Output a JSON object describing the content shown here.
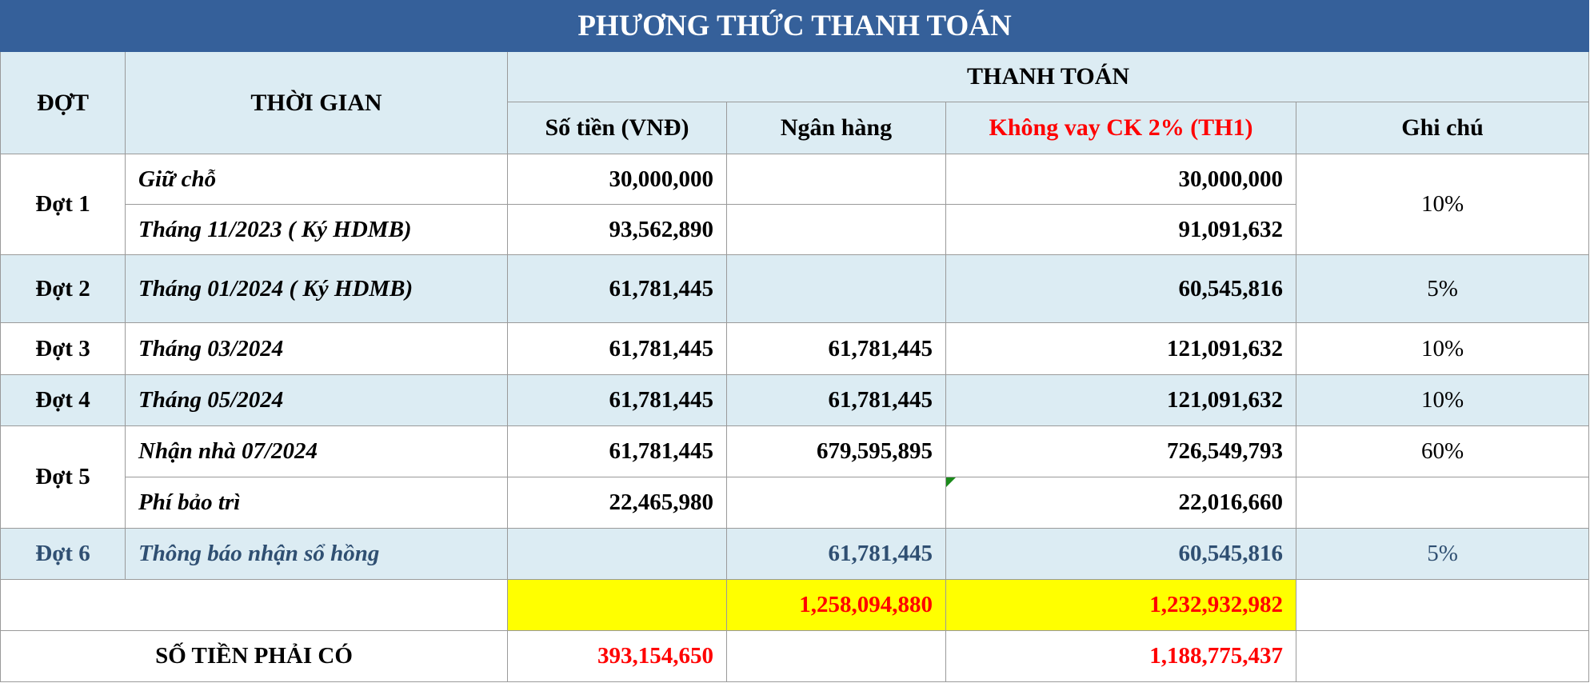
{
  "title": "PHƯƠNG THỨC THANH TOÁN",
  "headers": {
    "dot": "ĐỢT",
    "thoi_gian": "THỜI GIAN",
    "thanh_toan": "THANH TOÁN",
    "so_tien": "Số tiền (VNĐ)",
    "ngan_hang": "Ngân hàng",
    "khong_vay": "Không vay CK 2% (TH1)",
    "ghi_chu": "Ghi chú"
  },
  "rows": [
    {
      "dot": "Đợt 1",
      "time": "Giữ chỗ",
      "so_tien": "30,000,000",
      "ngan_hang": "",
      "khong_vay": "30,000,000",
      "ghi_chu": "10%"
    },
    {
      "time": "Tháng 11/2023 ( Ký HDMB)",
      "so_tien": "93,562,890",
      "ngan_hang": "",
      "khong_vay": "91,091,632"
    },
    {
      "dot": "Đợt 2",
      "time": "Tháng 01/2024 ( Ký HDMB)",
      "so_tien": "61,781,445",
      "ngan_hang": "",
      "khong_vay": "60,545,816",
      "ghi_chu": "5%"
    },
    {
      "dot": "Đợt 3",
      "time": "Tháng 03/2024",
      "so_tien": "61,781,445",
      "ngan_hang": "61,781,445",
      "khong_vay": "121,091,632",
      "ghi_chu": "10%"
    },
    {
      "dot": "Đợt 4",
      "time": "Tháng 05/2024",
      "so_tien": "61,781,445",
      "ngan_hang": "61,781,445",
      "khong_vay": "121,091,632",
      "ghi_chu": "10%"
    },
    {
      "dot": "Đợt 5",
      "time": "Nhận nhà 07/2024",
      "so_tien": "61,781,445",
      "ngan_hang": "679,595,895",
      "khong_vay": "726,549,793",
      "ghi_chu": "60%"
    },
    {
      "time": "Phí bảo trì",
      "so_tien": "22,465,980",
      "ngan_hang": "",
      "khong_vay": "22,016,660",
      "ghi_chu": ""
    },
    {
      "dot": "Đợt 6",
      "time": "Thông báo nhận sổ hồng",
      "so_tien": "",
      "ngan_hang": "61,781,445",
      "khong_vay": "60,545,816",
      "ghi_chu": "5%"
    }
  ],
  "totals": {
    "ngan_hang": "1,258,094,880",
    "khong_vay": "1,232,932,982"
  },
  "required": {
    "label": "SỐ TIỀN PHẢI CÓ",
    "so_tien": "393,154,650",
    "khong_vay": "1,188,775,437"
  }
}
